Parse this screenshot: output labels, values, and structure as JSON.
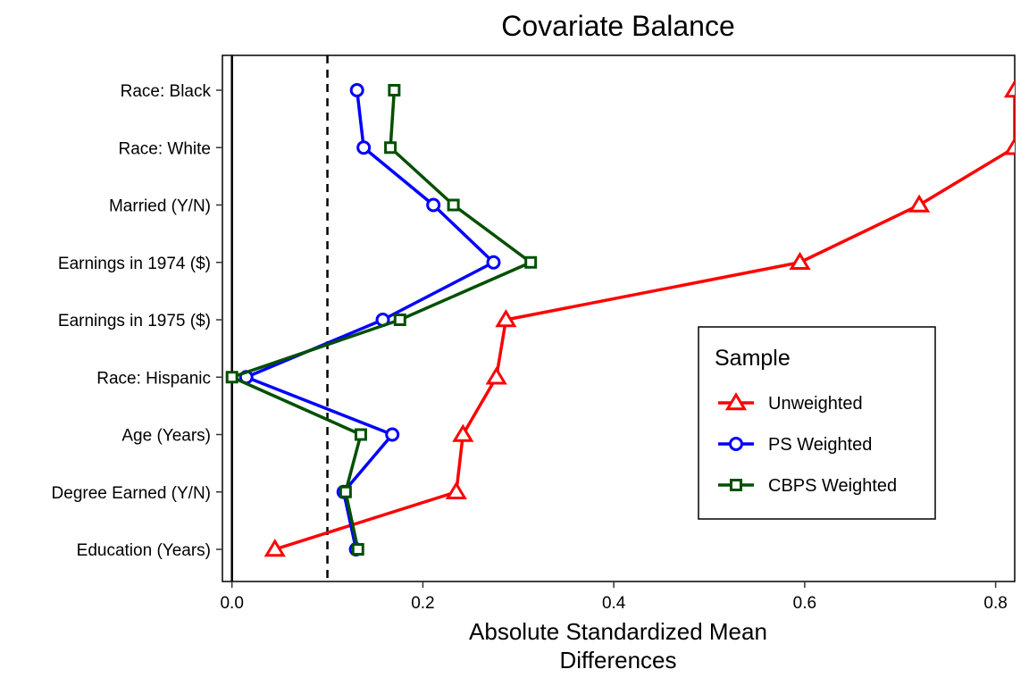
{
  "chart_data": {
    "type": "line",
    "title": "Covariate Balance",
    "xlabel_lines": [
      "Absolute Standardized Mean",
      "Differences"
    ],
    "ylabel": "",
    "xlim": [
      -0.01,
      0.82
    ],
    "x_ticks": [
      0.0,
      0.2,
      0.4,
      0.6,
      0.8
    ],
    "x_tick_labels": [
      "0.0",
      "0.2",
      "0.4",
      "0.6",
      "0.8"
    ],
    "categories": [
      "Race: Black",
      "Race: White",
      "Married (Y/N)",
      "Earnings in 1974 ($)",
      "Earnings in 1975 ($)",
      "Race: Hispanic",
      "Age (Years)",
      "Degree Earned (Y/N)",
      "Education (Years)"
    ],
    "reference_lines": [
      {
        "x": 0.0,
        "style": "solid"
      },
      {
        "x": 0.1,
        "style": "dashed"
      }
    ],
    "legend": {
      "title": "Sample",
      "position": "right-center"
    },
    "grid": false,
    "series": [
      {
        "name": "Unweighted",
        "color": "#ff0000",
        "marker": "triangle",
        "values": [
          0.82,
          0.82,
          0.72,
          0.595,
          0.287,
          0.277,
          0.242,
          0.235,
          0.045
        ]
      },
      {
        "name": "PS Weighted",
        "color": "#0000ff",
        "marker": "circle",
        "values": [
          0.131,
          0.138,
          0.211,
          0.274,
          0.158,
          0.015,
          0.168,
          0.117,
          0.13
        ]
      },
      {
        "name": "CBPS Weighted",
        "color": "#005000",
        "marker": "square",
        "values": [
          0.17,
          0.166,
          0.232,
          0.313,
          0.176,
          0.0,
          0.135,
          0.119,
          0.132
        ]
      }
    ]
  }
}
